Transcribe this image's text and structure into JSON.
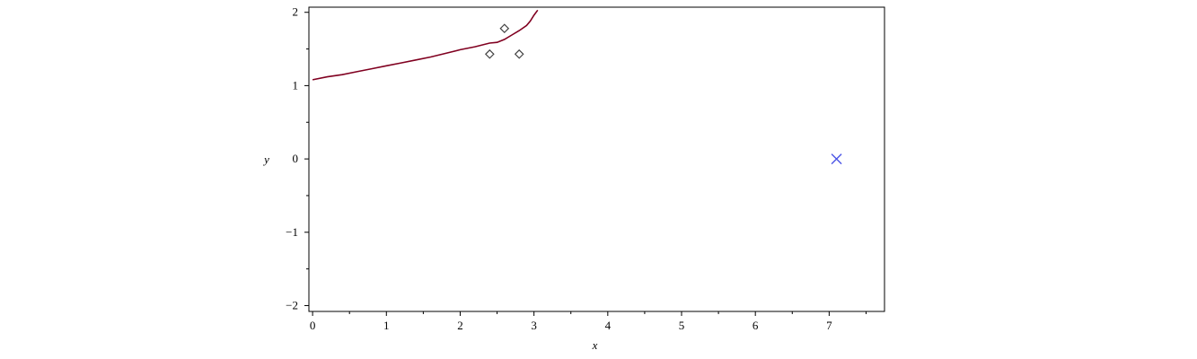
{
  "chart_data": {
    "type": "line",
    "title": "",
    "xlabel": "x",
    "ylabel": "y",
    "xlim": [
      -0.05,
      7.75
    ],
    "ylim": [
      -2.08,
      2.07
    ],
    "x_ticks": [
      0,
      1,
      2,
      3,
      4,
      5,
      6,
      7
    ],
    "x_tick_labels": [
      "0",
      "1",
      "2",
      "3",
      "4",
      "5",
      "6",
      "7"
    ],
    "x_minor_ticks": [
      0.5,
      1.5,
      2.5,
      3.5,
      4.5,
      5.5,
      6.5,
      7.5
    ],
    "y_ticks": [
      -2,
      -1,
      0,
      1,
      2
    ],
    "y_tick_labels": [
      "−2",
      "−1",
      "0",
      "1",
      "2"
    ],
    "y_minor_ticks": [
      -1.5,
      -0.5,
      0.5,
      1.5
    ],
    "grid": false,
    "series": [
      {
        "type": "line",
        "color": "#800020",
        "points": [
          [
            0.0,
            1.08
          ],
          [
            0.2,
            1.12
          ],
          [
            0.4,
            1.15
          ],
          [
            0.6,
            1.19
          ],
          [
            0.8,
            1.23
          ],
          [
            1.0,
            1.27
          ],
          [
            1.2,
            1.31
          ],
          [
            1.4,
            1.35
          ],
          [
            1.6,
            1.39
          ],
          [
            1.8,
            1.44
          ],
          [
            2.0,
            1.49
          ],
          [
            2.2,
            1.53
          ],
          [
            2.4,
            1.58
          ],
          [
            2.5,
            1.59
          ],
          [
            2.6,
            1.63
          ],
          [
            2.7,
            1.69
          ],
          [
            2.8,
            1.75
          ],
          [
            2.9,
            1.82
          ],
          [
            2.95,
            1.88
          ],
          [
            3.0,
            1.96
          ],
          [
            3.05,
            2.03
          ]
        ]
      },
      {
        "type": "scatter",
        "marker": "diamond",
        "color": "#444444",
        "points": [
          [
            2.4,
            1.43
          ],
          [
            2.6,
            1.78
          ],
          [
            2.8,
            1.43
          ]
        ]
      },
      {
        "type": "scatter",
        "marker": "x",
        "color": "#4b55e6",
        "points": [
          [
            7.1,
            0.0
          ]
        ]
      }
    ]
  }
}
